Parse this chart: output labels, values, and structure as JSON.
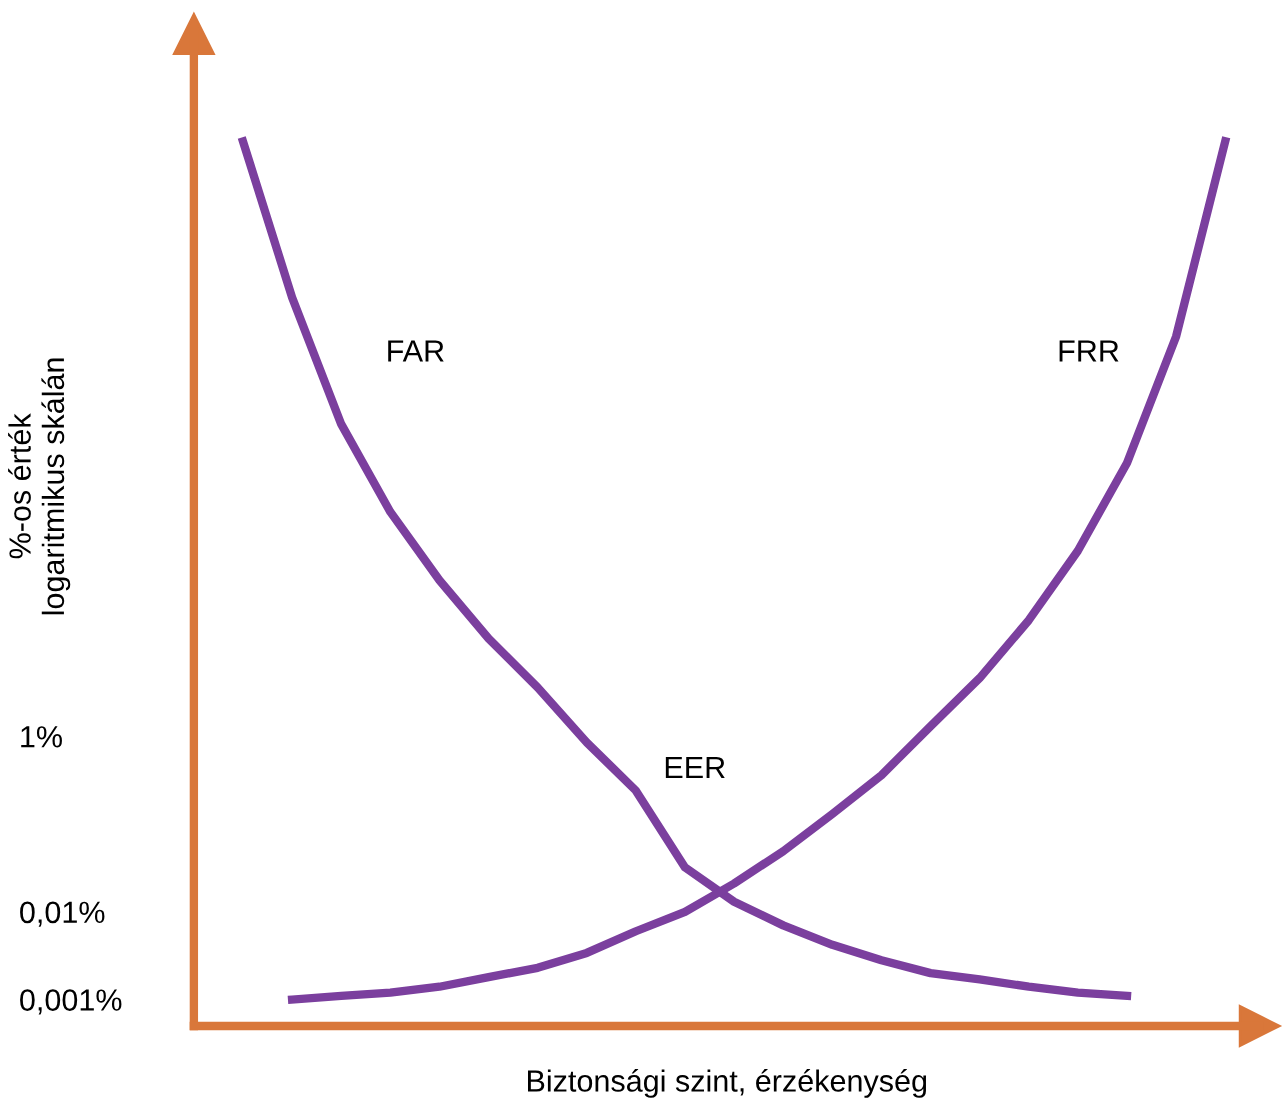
{
  "chart_data": {
    "type": "line",
    "xlabel": "Biztonsági szint, érzékenység",
    "ylabel": "%-os érték\nlogaritmikus skálán",
    "log": "y",
    "categories": [
      null,
      null,
      null,
      null,
      null,
      null,
      null,
      null,
      null,
      null,
      null,
      null,
      null,
      null,
      null,
      null,
      null,
      null,
      null,
      null,
      null
    ],
    "ylim": [
      0.0005,
      100000000
    ],
    "yticks": [
      {
        "value": 1,
        "label": "1%"
      },
      {
        "value": 0.01,
        "label": "0,01%"
      },
      {
        "value": 0.001,
        "label": "0,001%"
      }
    ],
    "grid": false,
    "legend": false,
    "marker": "none",
    "line_style": "solid",
    "series": [
      {
        "name": "FAR",
        "color": "#7b3f9e",
        "values": [
          6000000,
          100000,
          3600,
          360,
          60,
          13,
          3.6,
          0.85,
          0.24,
          0.032,
          0.013,
          0.007,
          0.0042,
          0.0028,
          0.002,
          0.0017,
          0.0014,
          0.0012,
          0.0011,
          null,
          null
        ]
      },
      {
        "name": "FRR",
        "color": "#7b3f9e",
        "values": [
          null,
          0.001,
          0.0011,
          0.0012,
          0.0014,
          0.0018,
          0.0023,
          0.0034,
          0.006,
          0.01,
          0.021,
          0.049,
          0.13,
          0.36,
          1.3,
          4.6,
          21,
          130,
          1300,
          36000,
          6000000
        ]
      }
    ],
    "annotations": [
      "EER"
    ]
  }
}
